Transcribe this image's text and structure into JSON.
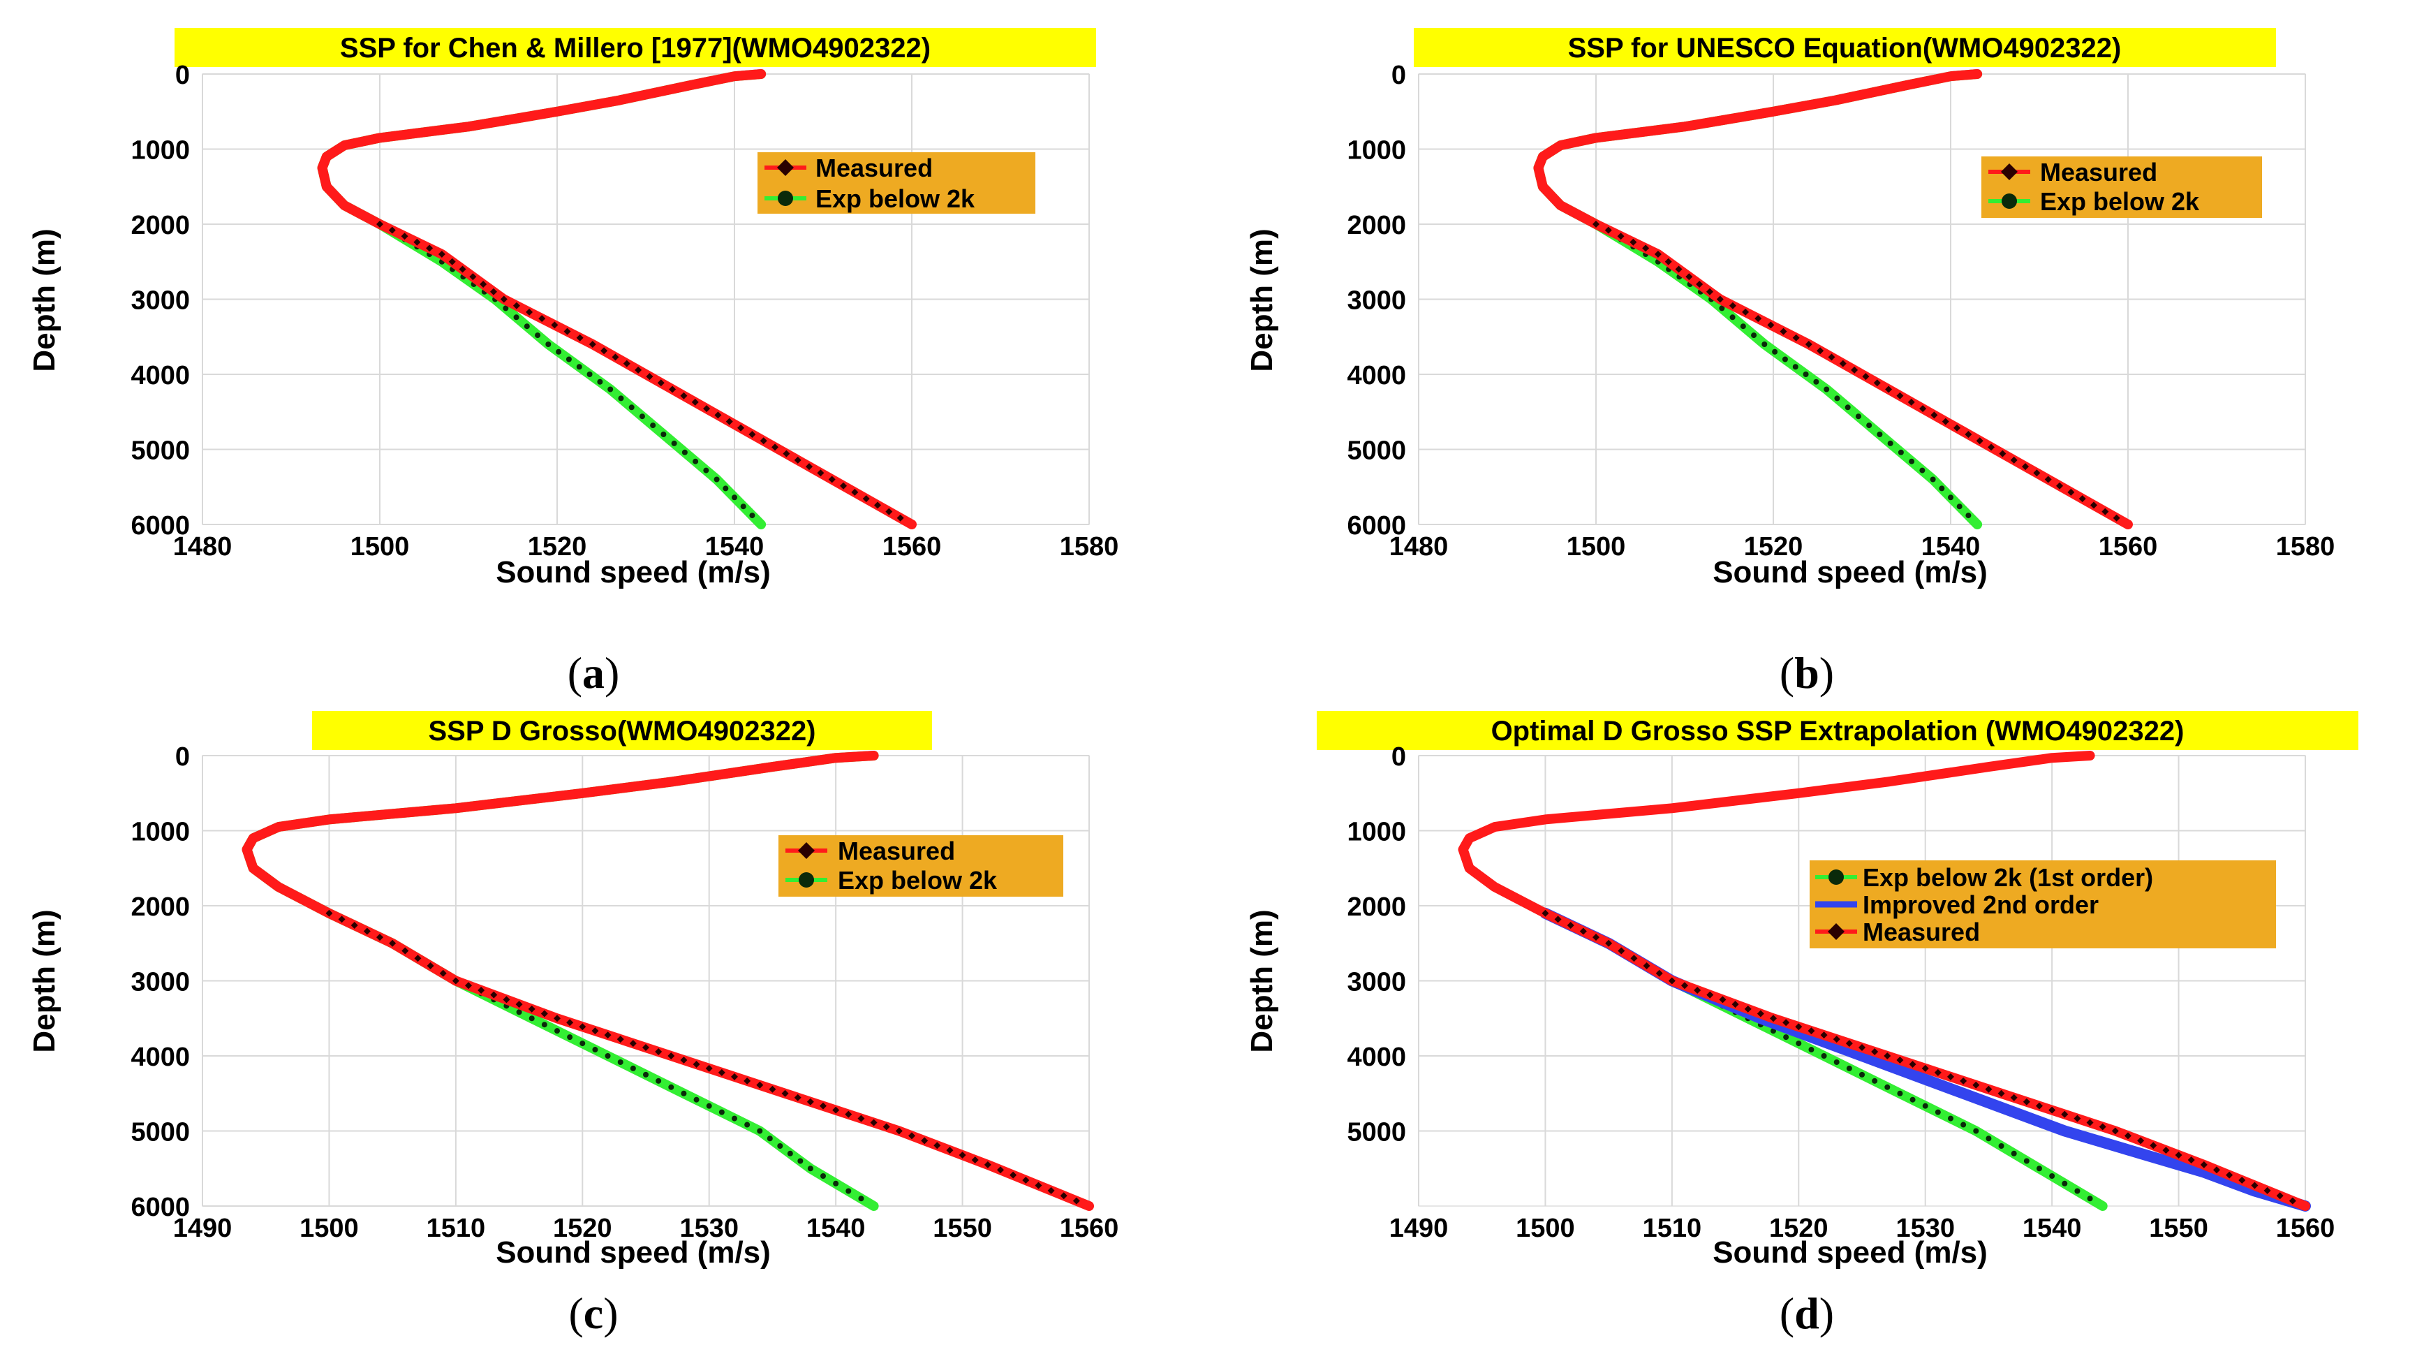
{
  "colors": {
    "measured": "#ff1a1a",
    "measured_marker": "#2a0000",
    "exp": "#33ee33",
    "exp_marker": "#0a2a0a",
    "improved": "#3344ee",
    "title_bg": "#ffff00",
    "legend_bg": "#eeaa22",
    "grid": "#d9d9d9"
  },
  "chart_data": [
    {
      "panel": "a",
      "caption": "(a)",
      "type": "line",
      "title": "SSP for Chen & Millero [1977](WMO4902322)",
      "xlabel": "Sound speed (m/s)",
      "ylabel": "Depth (m)",
      "xlim": [
        1480,
        1580
      ],
      "ylim": [
        6000,
        0
      ],
      "xticks": [
        "1480",
        "1500",
        "1520",
        "1540",
        "1560",
        "1580"
      ],
      "yticks": [
        "0",
        "1000",
        "2000",
        "3000",
        "4000",
        "5000",
        "6000"
      ],
      "series": [
        {
          "name": "Measured",
          "key": "measured",
          "x": [
            1543,
            1540,
            1535,
            1527,
            1520,
            1510,
            1500,
            1496,
            1494,
            1493.5,
            1494,
            1496,
            1500,
            1507,
            1514,
            1524,
            1533,
            1542,
            1551,
            1560
          ],
          "y": [
            0,
            30,
            150,
            350,
            500,
            700,
            850,
            950,
            1100,
            1250,
            1500,
            1750,
            2000,
            2400,
            3000,
            3600,
            4200,
            4800,
            5400,
            6000
          ]
        },
        {
          "name": "Exp below 2k",
          "key": "exp",
          "x": [
            1543,
            1540,
            1535,
            1527,
            1520,
            1510,
            1500,
            1496,
            1494,
            1493.5,
            1494,
            1496,
            1500,
            1507,
            1513,
            1519,
            1526,
            1532,
            1538,
            1543
          ],
          "y": [
            0,
            30,
            150,
            350,
            500,
            700,
            850,
            950,
            1100,
            1250,
            1500,
            1750,
            2000,
            2500,
            3000,
            3600,
            4200,
            4800,
            5400,
            6000
          ]
        }
      ],
      "legend": [
        "Measured",
        "Exp below 2k"
      ],
      "legend_position": "top-right"
    },
    {
      "panel": "b",
      "caption": "(b)",
      "type": "line",
      "title": "SSP for UNESCO Equation(WMO4902322)",
      "xlabel": "Sound speed (m/s)",
      "ylabel": "Depth (m)",
      "xlim": [
        1480,
        1580
      ],
      "ylim": [
        6000,
        0
      ],
      "xticks": [
        "1480",
        "1500",
        "1520",
        "1540",
        "1560",
        "1580"
      ],
      "yticks": [
        "0",
        "1000",
        "2000",
        "3000",
        "4000",
        "5000",
        "6000"
      ],
      "series": [
        {
          "name": "Measured",
          "key": "measured",
          "x": [
            1543,
            1540,
            1535,
            1527,
            1520,
            1510,
            1500,
            1496,
            1494,
            1493.5,
            1494,
            1496,
            1500,
            1507,
            1514,
            1524,
            1533,
            1542,
            1551,
            1560
          ],
          "y": [
            0,
            30,
            150,
            350,
            500,
            700,
            850,
            950,
            1100,
            1250,
            1500,
            1750,
            2000,
            2400,
            3000,
            3600,
            4200,
            4800,
            5400,
            6000
          ]
        },
        {
          "name": "Exp below 2k",
          "key": "exp",
          "x": [
            1543,
            1540,
            1535,
            1527,
            1520,
            1510,
            1500,
            1496,
            1494,
            1493.5,
            1494,
            1496,
            1500,
            1507,
            1513,
            1519,
            1526,
            1532,
            1538,
            1543
          ],
          "y": [
            0,
            30,
            150,
            350,
            500,
            700,
            850,
            950,
            1100,
            1250,
            1500,
            1750,
            2000,
            2500,
            3000,
            3600,
            4200,
            4800,
            5400,
            6000
          ]
        }
      ],
      "legend": [
        "Measured",
        "Exp below 2k"
      ],
      "legend_position": "top-right"
    },
    {
      "panel": "c",
      "caption": "(c)",
      "type": "line",
      "title": "SSP D Grosso(WMO4902322)",
      "xlabel": "Sound speed (m/s)",
      "ylabel": "Depth (m)",
      "xlim": [
        1490,
        1560
      ],
      "ylim": [
        6000,
        0
      ],
      "xticks": [
        "1490",
        "1500",
        "1510",
        "1520",
        "1530",
        "1540",
        "1550",
        "1560"
      ],
      "yticks": [
        "0",
        "1000",
        "2000",
        "3000",
        "4000",
        "5000",
        "6000"
      ],
      "series": [
        {
          "name": "Measured",
          "key": "measured",
          "x": [
            1543,
            1540,
            1535,
            1527,
            1520,
            1510,
            1500,
            1496,
            1494,
            1493.5,
            1494,
            1496,
            1500,
            1505,
            1510,
            1518,
            1527,
            1536,
            1545,
            1552,
            1560
          ],
          "y": [
            0,
            30,
            150,
            350,
            500,
            700,
            850,
            950,
            1100,
            1250,
            1500,
            1750,
            2100,
            2500,
            3000,
            3500,
            4000,
            4500,
            5000,
            5450,
            6000
          ]
        },
        {
          "name": "Exp below 2k",
          "key": "exp",
          "x": [
            1543,
            1540,
            1535,
            1527,
            1520,
            1510,
            1500,
            1496,
            1494,
            1493.5,
            1494,
            1496,
            1500,
            1505,
            1510,
            1516,
            1522,
            1528,
            1534,
            1538,
            1543
          ],
          "y": [
            0,
            30,
            150,
            350,
            500,
            700,
            850,
            950,
            1100,
            1250,
            1500,
            1750,
            2100,
            2500,
            3000,
            3500,
            4000,
            4500,
            5000,
            5500,
            6000
          ]
        }
      ],
      "legend": [
        "Measured",
        "Exp below 2k"
      ],
      "legend_position": "top-right"
    },
    {
      "panel": "d",
      "caption": "(d)",
      "type": "line",
      "title": "Optimal D Grosso SSP Extrapolation (WMO4902322)",
      "xlabel": "Sound speed (m/s)",
      "ylabel": "Depth (m)",
      "xlim": [
        1490,
        1560
      ],
      "ylim": [
        6000,
        0
      ],
      "xticks": [
        "1490",
        "1500",
        "1510",
        "1520",
        "1530",
        "1540",
        "1550",
        "1560"
      ],
      "yticks": [
        "0",
        "1000",
        "2000",
        "3000",
        "4000",
        "5000"
      ],
      "series": [
        {
          "name": "Exp below 2k (1st order)",
          "key": "exp",
          "x": [
            1500,
            1505,
            1510,
            1516,
            1522,
            1528,
            1534,
            1539,
            1544
          ],
          "y": [
            2100,
            2500,
            3000,
            3500,
            4000,
            4500,
            5000,
            5500,
            6000
          ]
        },
        {
          "name": "Improved 2nd order",
          "key": "improved",
          "x": [
            1500,
            1505,
            1510,
            1517,
            1525,
            1533,
            1541,
            1547,
            1552,
            1556,
            1560
          ],
          "y": [
            2100,
            2500,
            3000,
            3500,
            4000,
            4500,
            5000,
            5300,
            5550,
            5800,
            6000
          ]
        },
        {
          "name": "Measured",
          "key": "measured",
          "x": [
            1543,
            1540,
            1535,
            1527,
            1520,
            1510,
            1500,
            1496,
            1494,
            1493.5,
            1494,
            1496,
            1500,
            1505,
            1510,
            1518,
            1527,
            1536,
            1545,
            1552,
            1560
          ],
          "y": [
            0,
            30,
            150,
            350,
            500,
            700,
            850,
            950,
            1100,
            1250,
            1500,
            1750,
            2100,
            2500,
            3000,
            3500,
            4000,
            4500,
            5000,
            5450,
            6000
          ]
        }
      ],
      "legend": [
        "Exp below 2k (1st order)",
        "Improved 2nd order",
        "Measured"
      ],
      "legend_position": "top-right"
    }
  ]
}
